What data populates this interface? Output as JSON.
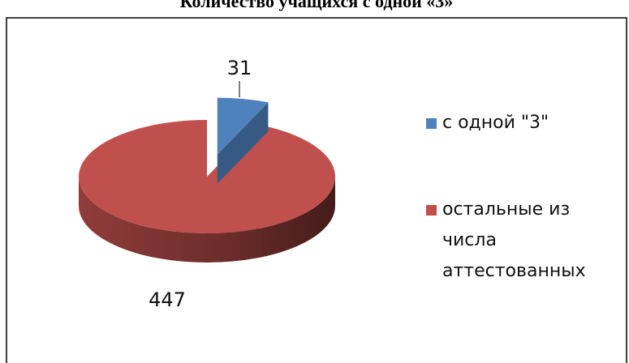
{
  "chart_data": {
    "type": "pie",
    "title": "Количество учащихся с одной «3»",
    "categories": [
      "с одной \"3\"",
      "остальные из числа аттестованных"
    ],
    "values": [
      31,
      447
    ],
    "colors": [
      "#4f81bd",
      "#c0504d"
    ],
    "legend": "right"
  }
}
